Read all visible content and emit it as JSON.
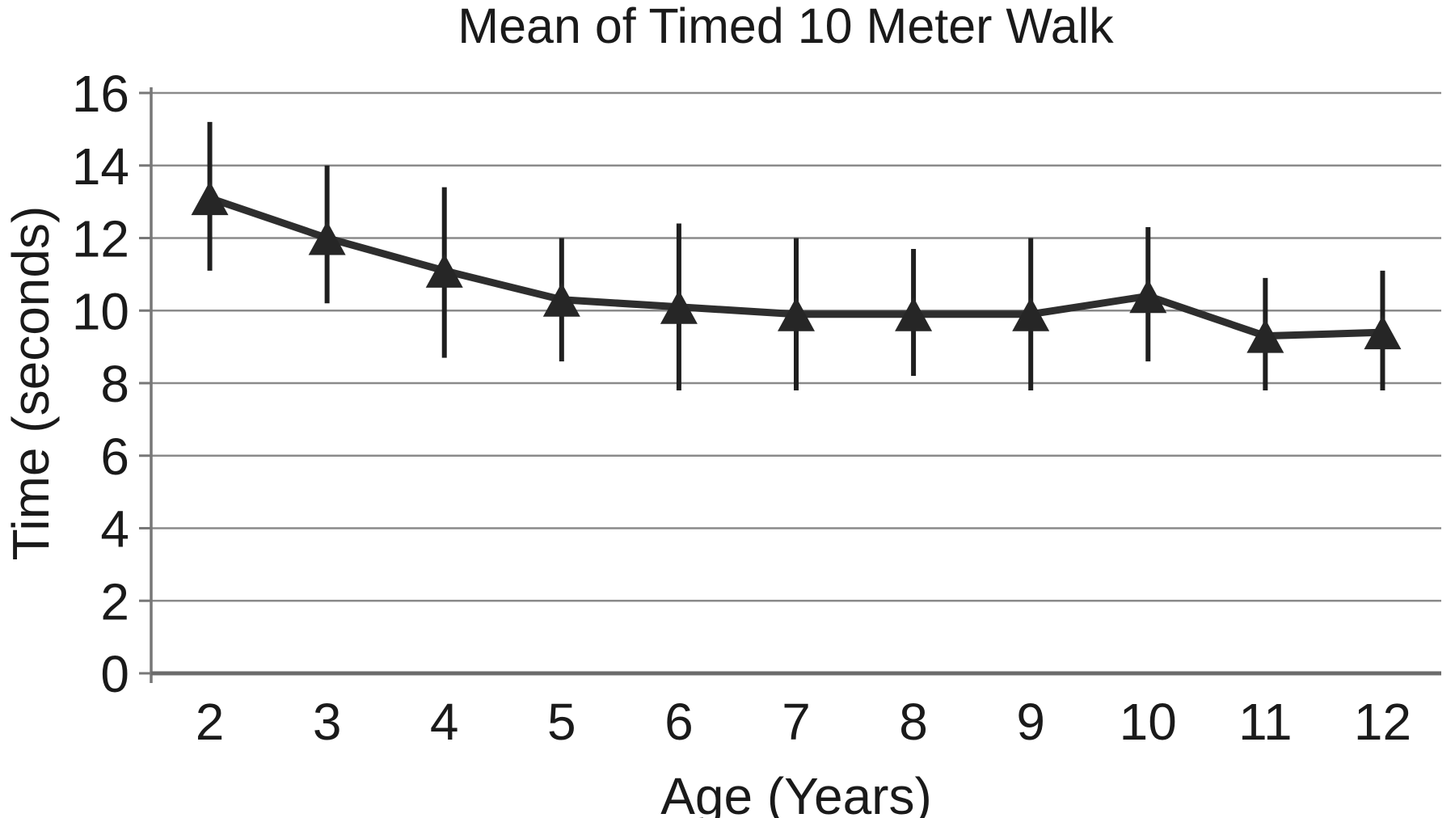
{
  "figure": {
    "title": "Mean of Timed 10 Meter Walk",
    "x_axis_label": "Age (Years)",
    "y_axis_label": "Time (seconds)"
  },
  "chart_data": {
    "type": "line",
    "title": "Mean of Timed 10 Meter Walk",
    "xlabel": "Age (Years)",
    "ylabel": "Time (seconds)",
    "categories": [
      "2",
      "3",
      "4",
      "5",
      "6",
      "7",
      "8",
      "9",
      "10",
      "11",
      "12"
    ],
    "series": [
      {
        "name": "Mean of timed 10 meter walk",
        "marker": "triangle-up",
        "values": [
          13.1,
          12.0,
          11.1,
          10.3,
          10.1,
          9.9,
          9.9,
          9.9,
          10.4,
          9.3,
          9.4
        ],
        "error_upper": [
          15.2,
          14.0,
          13.4,
          12.0,
          12.4,
          12.0,
          11.7,
          12.0,
          12.3,
          10.9,
          11.1
        ],
        "error_lower": [
          11.1,
          10.2,
          8.7,
          8.6,
          7.8,
          7.8,
          8.2,
          7.8,
          8.6,
          7.8,
          7.8
        ]
      }
    ],
    "ylim": [
      0,
      16
    ],
    "yticks": [
      0,
      2,
      4,
      6,
      8,
      10,
      12,
      14,
      16
    ],
    "grid": "horizontal",
    "legend": "none",
    "colors": {
      "line": "#2e2e2e",
      "marker": "#262626",
      "error_bar": "#1f1f1f",
      "gridline": "#8a8a8a",
      "axis": "#777777",
      "baseline": "#6b6b6b",
      "text": "#1a1a1a",
      "background": "#ffffff"
    }
  }
}
